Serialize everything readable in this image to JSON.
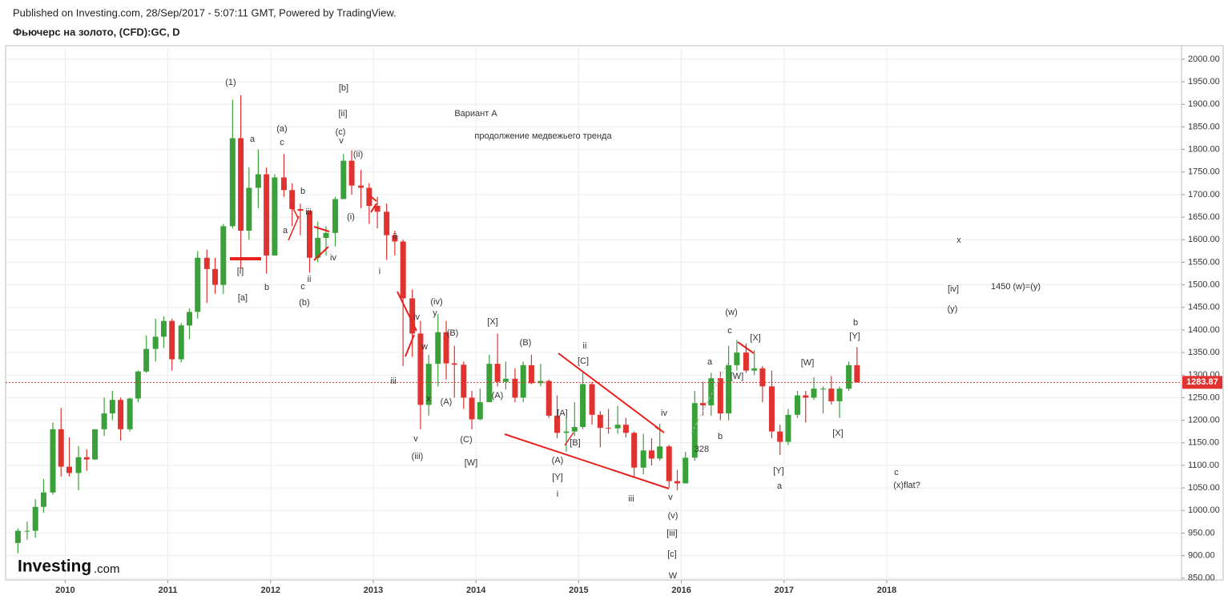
{
  "header": {
    "published": "Published on Investing.com, 28/Sep/2017 - 5:07:11 GMT, Powered by TradingView.",
    "symbol": "Фьючерс на золото, (CFD):GC, D"
  },
  "logo": {
    "brand": "Investing",
    "suffix": ".com"
  },
  "chart_data": {
    "type": "candlestick",
    "xlim": [
      2009.42,
      2020.87
    ],
    "xticks": [
      2010,
      2011,
      2012,
      2013,
      2014,
      2015,
      2016,
      2017,
      2018
    ],
    "ylim": [
      846,
      2030
    ],
    "yticks": [
      {
        "value": 850,
        "label": "850.00"
      },
      {
        "value": 900,
        "label": "900.00"
      },
      {
        "value": 950,
        "label": "950.00"
      },
      {
        "value": 1000,
        "label": "1000.00"
      },
      {
        "value": 1050,
        "label": "1050.00"
      },
      {
        "value": 1100,
        "label": "1100.00"
      },
      {
        "value": 1150,
        "label": "1150.00"
      },
      {
        "value": 1200,
        "label": "1200.00"
      },
      {
        "value": 1250,
        "label": "1250.00"
      },
      {
        "value": 1300,
        "label": "1300.00"
      },
      {
        "value": 1350,
        "label": "1350.00"
      },
      {
        "value": 1400,
        "label": "1400.00"
      },
      {
        "value": 1450,
        "label": "1450.00"
      },
      {
        "value": 1500,
        "label": "1500.00"
      },
      {
        "value": 1550,
        "label": "1550.00"
      },
      {
        "value": 1600,
        "label": "1600.00"
      },
      {
        "value": 1650,
        "label": "1650.00"
      },
      {
        "value": 1700,
        "label": "1700.00"
      },
      {
        "value": 1750,
        "label": "1750.00"
      },
      {
        "value": 1800,
        "label": "1800.00"
      },
      {
        "value": 1850,
        "label": "1850.00"
      },
      {
        "value": 1900,
        "label": "1900.00"
      },
      {
        "value": 1950,
        "label": "1950.00"
      },
      {
        "value": 2000,
        "label": "2000.00"
      }
    ],
    "grid": true,
    "up_color": "#3aa13a",
    "down_color": "#e0322f",
    "last_price": 1283.87,
    "last_price_color": "#e0322f",
    "x": [
      2009.54,
      2009.63,
      2009.71,
      2009.79,
      2009.88,
      2009.96,
      2010.04,
      2010.13,
      2010.21,
      2010.29,
      2010.38,
      2010.46,
      2010.54,
      2010.63,
      2010.71,
      2010.79,
      2010.88,
      2010.96,
      2011.04,
      2011.13,
      2011.21,
      2011.29,
      2011.38,
      2011.46,
      2011.54,
      2011.63,
      2011.71,
      2011.79,
      2011.88,
      2011.96,
      2012.04,
      2012.13,
      2012.21,
      2012.29,
      2012.38,
      2012.46,
      2012.54,
      2012.63,
      2012.71,
      2012.79,
      2012.88,
      2012.96,
      2013.04,
      2013.13,
      2013.21,
      2013.29,
      2013.38,
      2013.46,
      2013.54,
      2013.63,
      2013.71,
      2013.79,
      2013.88,
      2013.96,
      2014.04,
      2014.13,
      2014.21,
      2014.29,
      2014.38,
      2014.46,
      2014.54,
      2014.63,
      2014.71,
      2014.79,
      2014.88,
      2014.96,
      2015.04,
      2015.13,
      2015.21,
      2015.29,
      2015.38,
      2015.46,
      2015.54,
      2015.63,
      2015.71,
      2015.79,
      2015.88,
      2015.96,
      2016.04,
      2016.13,
      2016.21,
      2016.29,
      2016.38,
      2016.46,
      2016.54,
      2016.63,
      2016.71,
      2016.79,
      2016.88,
      2016.96,
      2017.04,
      2017.13,
      2017.21,
      2017.29,
      2017.38,
      2017.46,
      2017.54,
      2017.63,
      2017.71
    ],
    "open": [
      928,
      955,
      955,
      1008,
      1040,
      1180,
      1097,
      1083,
      1118,
      1113,
      1180,
      1215,
      1245,
      1180,
      1248,
      1308,
      1358,
      1385,
      1420,
      1335,
      1410,
      1440,
      1560,
      1535,
      1500,
      1630,
      1825,
      1620,
      1715,
      1745,
      1565,
      1738,
      1710,
      1668,
      1664,
      1560,
      1604,
      1615,
      1690,
      1775,
      1720,
      1715,
      1675,
      1662,
      1610,
      1596,
      1470,
      1392,
      1234,
      1325,
      1395,
      1326,
      1323,
      1250,
      1202,
      1240,
      1325,
      1285,
      1292,
      1250,
      1322,
      1282,
      1287,
      1210,
      1172,
      1175,
      1185,
      1280,
      1212,
      1183,
      1182,
      1190,
      1172,
      1095,
      1133,
      1115,
      1142,
      1065,
      1060,
      1117,
      1238,
      1233,
      1293,
      1215,
      1322,
      1350,
      1310,
      1315,
      1275,
      1175,
      1152,
      1212,
      1255,
      1250,
      1270,
      1270,
      1242,
      1270,
      1322
    ],
    "high": [
      960,
      975,
      1025,
      1070,
      1195,
      1227,
      1162,
      1143,
      1135,
      1180,
      1250,
      1265,
      1250,
      1250,
      1310,
      1388,
      1425,
      1430,
      1425,
      1415,
      1448,
      1575,
      1578,
      1560,
      1635,
      1910,
      1920,
      1760,
      1800,
      1760,
      1745,
      1790,
      1725,
      1680,
      1665,
      1640,
      1630,
      1695,
      1790,
      1798,
      1755,
      1725,
      1695,
      1680,
      1620,
      1600,
      1490,
      1420,
      1345,
      1435,
      1420,
      1365,
      1330,
      1265,
      1270,
      1345,
      1392,
      1330,
      1315,
      1330,
      1345,
      1325,
      1290,
      1255,
      1205,
      1240,
      1305,
      1285,
      1220,
      1225,
      1232,
      1205,
      1175,
      1170,
      1160,
      1192,
      1145,
      1090,
      1130,
      1265,
      1285,
      1305,
      1308,
      1365,
      1378,
      1370,
      1355,
      1320,
      1310,
      1190,
      1225,
      1265,
      1265,
      1295,
      1275,
      1298,
      1275,
      1330,
      1362
    ],
    "low": [
      905,
      935,
      940,
      995,
      1035,
      1075,
      1075,
      1045,
      1088,
      1112,
      1165,
      1200,
      1155,
      1175,
      1240,
      1305,
      1330,
      1360,
      1310,
      1328,
      1380,
      1425,
      1460,
      1480,
      1480,
      1625,
      1535,
      1600,
      1670,
      1525,
      1565,
      1695,
      1630,
      1610,
      1527,
      1550,
      1565,
      1585,
      1690,
      1700,
      1670,
      1635,
      1625,
      1555,
      1565,
      1320,
      1340,
      1180,
      1210,
      1275,
      1290,
      1250,
      1225,
      1180,
      1200,
      1240,
      1275,
      1268,
      1240,
      1240,
      1280,
      1275,
      1205,
      1160,
      1130,
      1165,
      1180,
      1190,
      1140,
      1170,
      1170,
      1162,
      1075,
      1080,
      1100,
      1110,
      1050,
      1045,
      1062,
      1110,
      1210,
      1210,
      1200,
      1200,
      1310,
      1305,
      1300,
      1240,
      1160,
      1123,
      1145,
      1205,
      1195,
      1245,
      1215,
      1235,
      1205,
      1265,
      1283
    ],
    "close": [
      955,
      955,
      1008,
      1040,
      1180,
      1097,
      1083,
      1118,
      1113,
      1180,
      1215,
      1245,
      1180,
      1248,
      1308,
      1358,
      1385,
      1420,
      1335,
      1410,
      1440,
      1560,
      1535,
      1500,
      1630,
      1825,
      1620,
      1715,
      1745,
      1565,
      1738,
      1710,
      1668,
      1664,
      1560,
      1604,
      1615,
      1690,
      1775,
      1720,
      1715,
      1675,
      1662,
      1610,
      1596,
      1470,
      1392,
      1234,
      1325,
      1395,
      1326,
      1323,
      1250,
      1202,
      1240,
      1325,
      1285,
      1292,
      1250,
      1322,
      1282,
      1287,
      1210,
      1172,
      1175,
      1185,
      1280,
      1212,
      1183,
      1182,
      1190,
      1172,
      1095,
      1133,
      1115,
      1142,
      1065,
      1060,
      1117,
      1238,
      1233,
      1293,
      1215,
      1322,
      1350,
      1310,
      1315,
      1275,
      1175,
      1152,
      1212,
      1255,
      1250,
      1270,
      1270,
      1242,
      1270,
      1322,
      1284
    ],
    "annotations": [
      "(1)",
      "a",
      "(a)",
      "c",
      "b",
      "iii",
      "a",
      "iv",
      "ii",
      "c",
      "(b)",
      "[i]",
      "b",
      "[a]",
      "[b]",
      "[ii]",
      "(c)",
      "v",
      "(ii)",
      "(i)",
      "ii",
      "i",
      "iv",
      "(iv)",
      "y",
      "w",
      "(B)",
      "x",
      "(A)",
      "iii",
      "v",
      "(iii)",
      "(C)",
      "[W]",
      "[X]",
      "(A)",
      "(B)",
      "ii",
      "[C]",
      "[A]",
      "[B]",
      "(A)",
      "[Y]",
      "i",
      "iii",
      "iv",
      "v",
      "(v)",
      "[iii]",
      "[c]",
      "W",
      "328",
      "a",
      "b",
      "(w)",
      "c",
      "[X]",
      "[W]",
      "[Y]",
      "a",
      "[W]",
      "[X]",
      "b",
      "[Y]",
      "c",
      "(x)flat?",
      "x",
      "[iv]",
      "1450  (w)=(y)",
      "(y)",
      "Вариант А",
      "продолжение медвежьего тренда"
    ]
  }
}
